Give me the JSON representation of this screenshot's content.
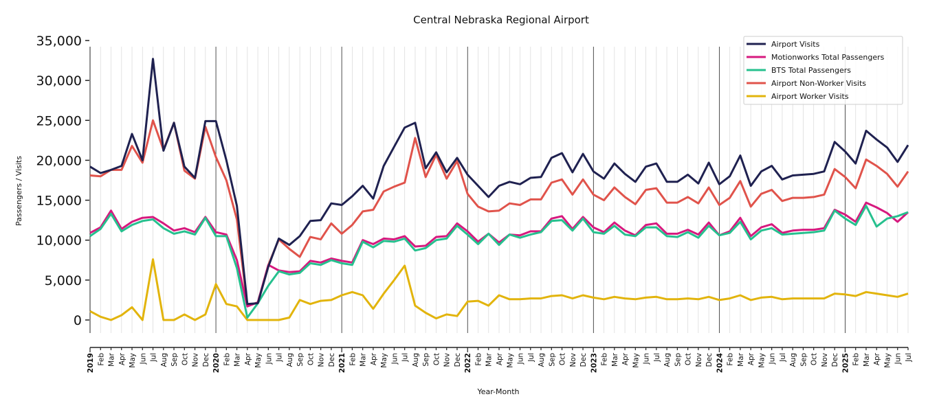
{
  "chart_data": {
    "type": "line",
    "title": "Central Nebraska Regional Airport",
    "xlabel": "Year-Month",
    "ylabel": "Passengers / Visits",
    "ylim": [
      -1500,
      35000
    ],
    "yticks": [
      0,
      5000,
      10000,
      15000,
      20000,
      25000,
      30000,
      35000
    ],
    "ytick_labels": [
      "0",
      "5,000",
      "10,000",
      "15,000",
      "20,000",
      "25,000",
      "30,000",
      "35,000"
    ],
    "grid": "vertical monthly gridlines; darker lines at each January",
    "legend_position": "top-right",
    "years": [
      "2019",
      "2020",
      "2021",
      "2022",
      "2023",
      "2024",
      "2025"
    ],
    "month_labels": [
      "Jan",
      "Feb",
      "Mar",
      "Apr",
      "May",
      "Jun",
      "Jul",
      "Aug",
      "Sep",
      "Oct",
      "Nov",
      "Dec"
    ],
    "x_start": "2019-01",
    "x_end": "2025-07",
    "series": [
      {
        "name": "Airport Visits",
        "color": "#1f2150",
        "values": [
          19200,
          18400,
          18800,
          19300,
          23300,
          20000,
          32700,
          21200,
          24700,
          19200,
          17800,
          24900,
          24900,
          20000,
          14300,
          2000,
          2100,
          6700,
          10200,
          9400,
          10500,
          12400,
          12500,
          14600,
          14400,
          15500,
          16800,
          15200,
          19300,
          21700,
          24100,
          24700,
          19000,
          21000,
          18500,
          20300,
          18200,
          16800,
          15400,
          16800,
          17300,
          17000,
          17800,
          17900,
          20300,
          20900,
          18500,
          20800,
          18600,
          17700,
          19600,
          18300,
          17300,
          19200,
          19600,
          17300,
          17300,
          18200,
          17100,
          19700,
          17000,
          18000,
          20600,
          16800,
          18600,
          19300,
          17600,
          18100,
          18200,
          18300,
          18600,
          22300,
          21100,
          19600,
          23700,
          22600,
          21600,
          19800,
          21900
        ]
      },
      {
        "name": "Motionworks Total Passengers",
        "color": "#d6197e",
        "values": [
          10900,
          11600,
          13700,
          11400,
          12300,
          12800,
          12900,
          12100,
          11200,
          11500,
          11000,
          12900,
          11000,
          10700,
          7500,
          1700,
          2200,
          6900,
          6200,
          6000,
          6100,
          7400,
          7200,
          7700,
          7400,
          7200,
          10000,
          9500,
          10200,
          10100,
          10500,
          9200,
          9300,
          10400,
          10500,
          12100,
          11100,
          9800,
          10800,
          9700,
          10700,
          10600,
          11100,
          11100,
          12700,
          13000,
          11400,
          12900,
          11600,
          11000,
          12200,
          11200,
          10600,
          11900,
          12100,
          10800,
          10800,
          11300,
          10700,
          12200,
          10600,
          11100,
          12800,
          10500,
          11600,
          12000,
          10900,
          11200,
          11300,
          11300,
          11500,
          13800,
          13200,
          12300,
          14700,
          14100,
          13400,
          12300,
          13500
        ]
      },
      {
        "name": "BTS Total Passengers",
        "color": "#26c08e",
        "values": [
          10500,
          11400,
          13300,
          11100,
          11900,
          12400,
          12600,
          11500,
          10800,
          11100,
          10700,
          12800,
          10500,
          10500,
          6500,
          300,
          2100,
          4300,
          6100,
          5700,
          5900,
          7100,
          6900,
          7500,
          7100,
          6900,
          9800,
          9100,
          9900,
          9800,
          10200,
          8700,
          9000,
          10000,
          10200,
          11800,
          10700,
          9500,
          10800,
          9400,
          10700,
          10300,
          10700,
          11000,
          12400,
          12500,
          11200,
          12700,
          11000,
          10800,
          11800,
          10700,
          10500,
          11600,
          11600,
          10500,
          10400,
          11000,
          10300,
          11800,
          10600,
          10900,
          12300,
          10100,
          11200,
          11500,
          10700,
          10800,
          10900,
          11000,
          11200,
          13700,
          12700,
          11900,
          14300,
          11700,
          12700,
          13000,
          13500
        ]
      },
      {
        "name": "Airport Non-Worker Visits",
        "color": "#e0534b",
        "values": [
          18100,
          18000,
          18800,
          18800,
          21800,
          19700,
          25000,
          21300,
          24700,
          18700,
          17700,
          24200,
          20400,
          17500,
          12600,
          1800,
          2200,
          6900,
          10100,
          8900,
          7900,
          10400,
          10100,
          12100,
          10800,
          11900,
          13600,
          13800,
          16100,
          16700,
          17200,
          22800,
          17900,
          20700,
          17700,
          19900,
          15800,
          14200,
          13600,
          13700,
          14600,
          14400,
          15100,
          15100,
          17200,
          17600,
          15700,
          17600,
          15700,
          15000,
          16600,
          15400,
          14500,
          16300,
          16500,
          14700,
          14700,
          15400,
          14600,
          16600,
          14400,
          15300,
          17400,
          14200,
          15800,
          16300,
          14900,
          15300,
          15300,
          15400,
          15700,
          18900,
          17900,
          16500,
          20100,
          19300,
          18300,
          16700,
          18600
        ]
      },
      {
        "name": "Airport Worker Visits",
        "color": "#e2b40c",
        "values": [
          1100,
          400,
          0,
          600,
          1600,
          0,
          7600,
          0,
          0,
          700,
          0,
          700,
          4500,
          2000,
          1700,
          0,
          0,
          0,
          0,
          300,
          2500,
          2000,
          2400,
          2500,
          3100,
          3500,
          3100,
          1400,
          3300,
          5000,
          6800,
          1800,
          900,
          200,
          700,
          500,
          2300,
          2400,
          1800,
          3100,
          2600,
          2600,
          2700,
          2700,
          3000,
          3100,
          2700,
          3100,
          2800,
          2600,
          2900,
          2700,
          2600,
          2800,
          2900,
          2600,
          2600,
          2700,
          2600,
          2900,
          2500,
          2700,
          3100,
          2500,
          2800,
          2900,
          2600,
          2700,
          2700,
          2700,
          2700,
          3300,
          3200,
          3000,
          3500,
          3300,
          3100,
          2900,
          3300
        ]
      }
    ]
  }
}
